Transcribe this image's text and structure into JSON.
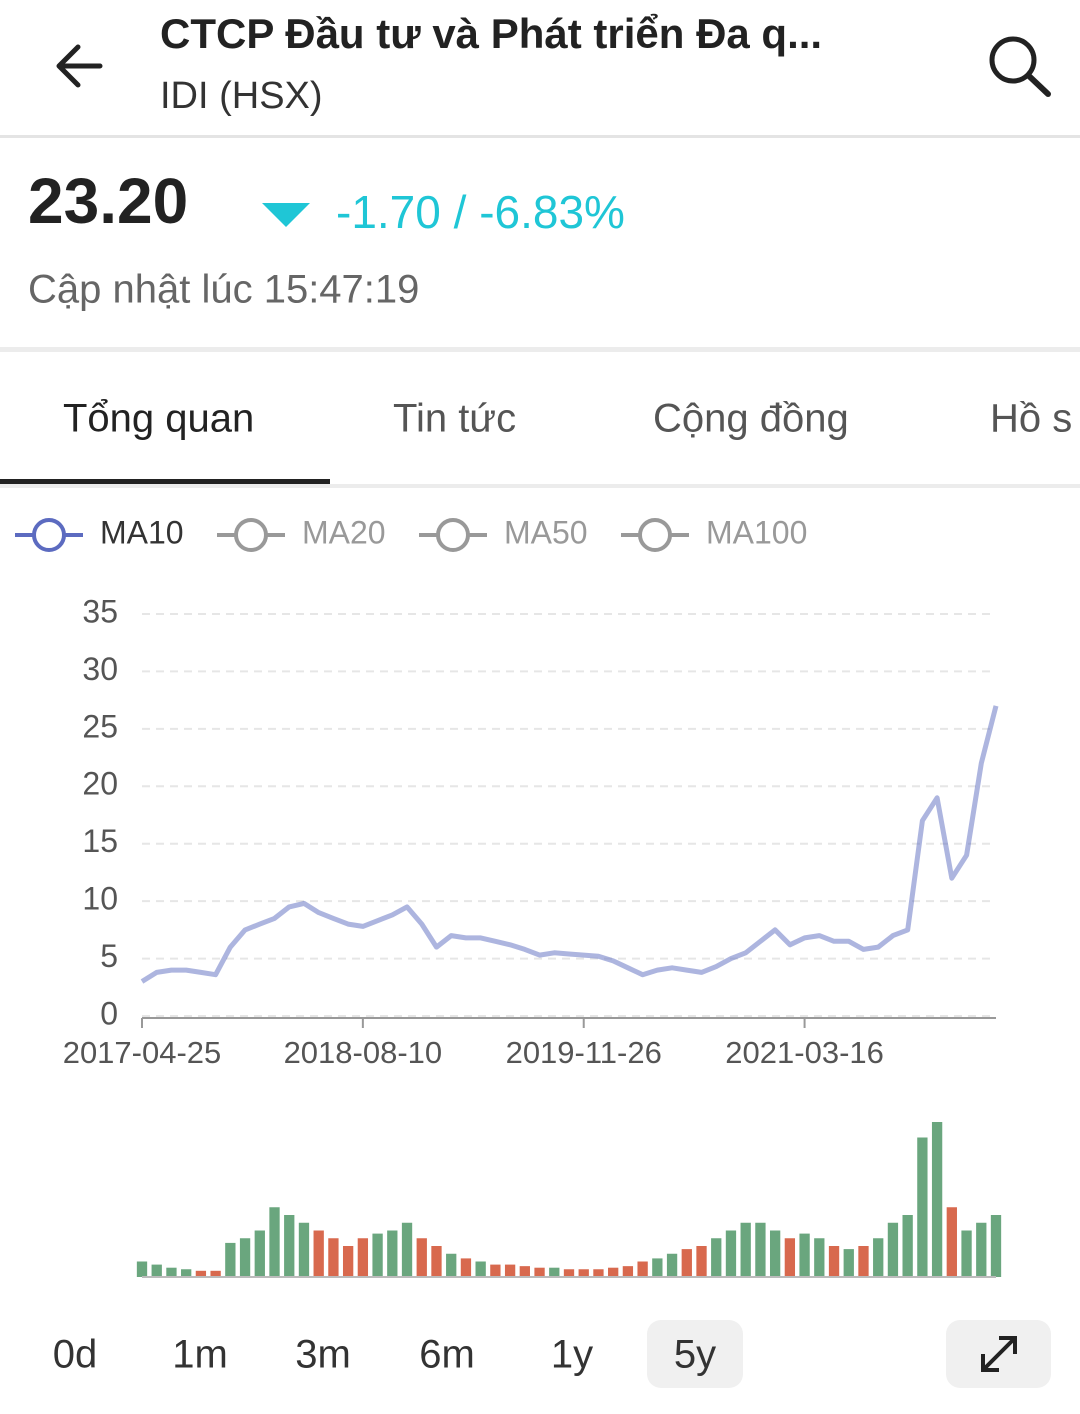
{
  "header": {
    "title": "CTCP Đầu tư và Phát triển Đa q...",
    "subtitle": "IDI (HSX)"
  },
  "quote": {
    "price": "23.20",
    "change": "-1.70 / -6.83%",
    "updated": "Cập nhật lúc 15:47:19"
  },
  "tabs": [
    "Tổng quan",
    "Tin tức",
    "Cộng đồng",
    "Hồ s"
  ],
  "chart_data": [
    {
      "type": "line",
      "categories": [
        "2017-04-25",
        null,
        null,
        null,
        null,
        null,
        null,
        null,
        null,
        null,
        null,
        null,
        null,
        null,
        null,
        "2018-08-10",
        null,
        null,
        null,
        null,
        null,
        null,
        null,
        null,
        null,
        null,
        null,
        null,
        null,
        null,
        "2019-11-26",
        null,
        null,
        null,
        null,
        null,
        null,
        null,
        null,
        null,
        null,
        null,
        null,
        null,
        null,
        "2021-03-16",
        null,
        null,
        null,
        null,
        null,
        null,
        null,
        null,
        null,
        null,
        null,
        null,
        null
      ],
      "series": [
        {
          "name": "MA10",
          "color": "#5c6bc0",
          "values": [
            3,
            3.8,
            4,
            4,
            3.8,
            3.6,
            6,
            7.5,
            8,
            8.5,
            9.5,
            9.8,
            9,
            8.5,
            8,
            7.8,
            8.3,
            8.8,
            9.5,
            8,
            6,
            7,
            6.8,
            6.8,
            6.5,
            6.2,
            5.8,
            5.3,
            5.5,
            5.4,
            5.3,
            5.2,
            4.8,
            4.2,
            3.6,
            4,
            4.2,
            4,
            3.8,
            4.3,
            5,
            5.5,
            6.5,
            7.5,
            6.2,
            6.8,
            7,
            6.5,
            6.5,
            5.8,
            6,
            7,
            7.5,
            17,
            19,
            12,
            14,
            22,
            27
          ]
        }
      ],
      "legend_inactive": [
        "MA20",
        "MA50",
        "MA100"
      ],
      "ylim": [
        0,
        35
      ],
      "yticks": [
        0,
        5,
        10,
        15,
        20,
        25,
        30,
        35
      ],
      "grid": true
    },
    {
      "type": "bar",
      "up_color": "#6aa67e",
      "down_color": "#d8694e",
      "values": [
        10,
        8,
        6,
        5,
        4,
        4,
        22,
        25,
        30,
        45,
        40,
        35,
        30,
        25,
        20,
        25,
        28,
        30,
        35,
        25,
        20,
        15,
        12,
        10,
        8,
        8,
        7,
        6,
        6,
        5,
        5,
        5,
        6,
        7,
        10,
        12,
        15,
        18,
        20,
        25,
        30,
        35,
        35,
        30,
        25,
        28,
        25,
        20,
        18,
        20,
        25,
        35,
        40,
        90,
        100,
        45,
        30,
        35,
        40
      ]
    }
  ],
  "ranges": [
    "0d",
    "1m",
    "3m",
    "6m",
    "1y",
    "5y"
  ],
  "active_range": 5
}
